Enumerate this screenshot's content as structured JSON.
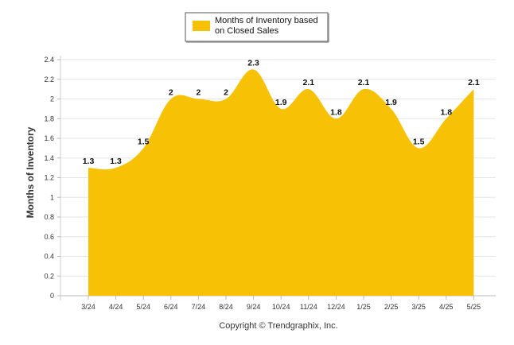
{
  "chart_data": {
    "type": "area",
    "title": "",
    "xlabel": "",
    "ylabel": "Months of Inventory",
    "categories": [
      "3/24",
      "4/24",
      "5/24",
      "6/24",
      "7/24",
      "8/24",
      "9/24",
      "10/24",
      "11/24",
      "12/24",
      "1/25",
      "2/25",
      "3/25",
      "4/25",
      "5/25"
    ],
    "series": [
      {
        "name": "Months of Inventory based on Closed Sales",
        "values": [
          1.3,
          1.3,
          1.5,
          2,
          2,
          2,
          2.3,
          1.9,
          2.1,
          1.8,
          2.1,
          1.9,
          1.5,
          1.8,
          2.1
        ],
        "color": "#f7c206"
      }
    ],
    "data_labels": [
      "1.3",
      "1.3",
      "1.5",
      "2",
      "2",
      "2",
      "2.3",
      "1.9",
      "2.1",
      "1.8",
      "2.1",
      "1.9",
      "1.5",
      "1.8",
      "2.1"
    ],
    "yticks": [
      "0",
      "0.2",
      "0.4",
      "0.6",
      "0.8",
      "1",
      "1.2",
      "1.4",
      "1.6",
      "1.8",
      "2",
      "2.2",
      "2.4"
    ],
    "ylim": [
      0,
      2.4
    ],
    "grid": true,
    "legend": {
      "position": "top-center",
      "label_lines": [
        "Months of Inventory based",
        "on Closed Sales"
      ]
    },
    "footer": "Copyright © Trendgraphix, Inc."
  }
}
